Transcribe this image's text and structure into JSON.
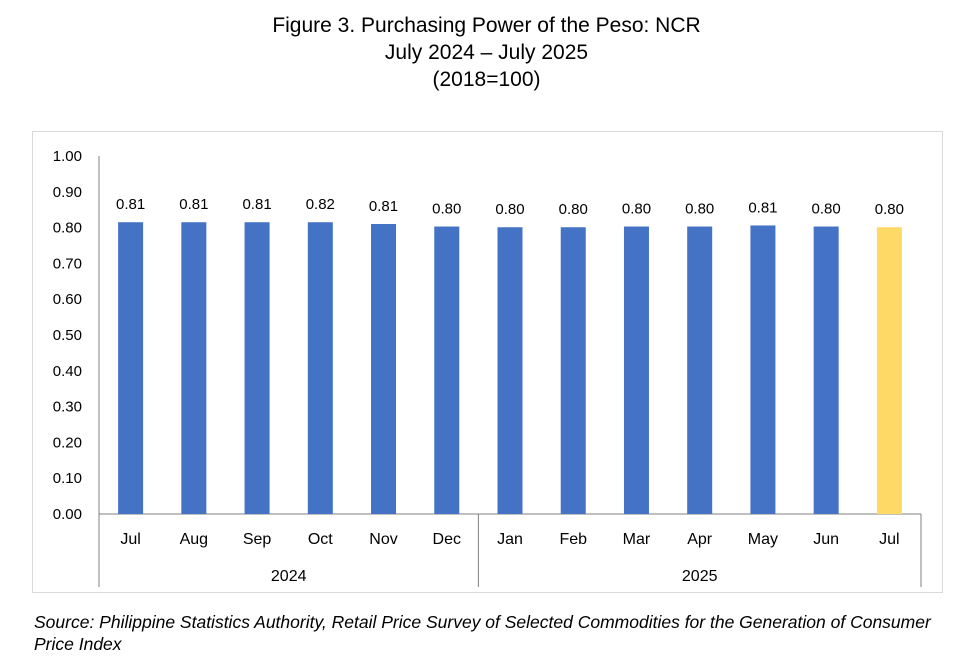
{
  "title_lines": [
    "Figure 3. Purchasing Power of the Peso: NCR",
    "July 2024 – July 2025",
    "(2018=100)"
  ],
  "source": " Source: Philippine Statistics Authority, Retail Price Survey of Selected Commodities for the Generation of Consumer Price Index",
  "colors": {
    "bar": "#4472C4",
    "highlight_bar": "#FFD966",
    "axis": "#808080",
    "frame": "#D9D9D9"
  },
  "chart_data": {
    "type": "bar",
    "categories": [
      "Jul",
      "Aug",
      "Sep",
      "Oct",
      "Nov",
      "Dec",
      "Jan",
      "Feb",
      "Mar",
      "Apr",
      "May",
      "Jun",
      "Jul"
    ],
    "groups": [
      {
        "label": "2024",
        "start": 0,
        "end": 5
      },
      {
        "label": "2025",
        "start": 6,
        "end": 12
      }
    ],
    "values": [
      0.815,
      0.815,
      0.815,
      0.815,
      0.81,
      0.803,
      0.801,
      0.801,
      0.803,
      0.803,
      0.806,
      0.803,
      0.801
    ],
    "data_labels": [
      "0.81",
      "0.81",
      "0.81",
      "0.82",
      "0.81",
      "0.80",
      "0.80",
      "0.80",
      "0.80",
      "0.80",
      "0.81",
      "0.80",
      "0.80"
    ],
    "highlight_index": 12,
    "ylim": [
      0,
      1
    ],
    "yticks": [
      "0.00",
      "0.10",
      "0.20",
      "0.30",
      "0.40",
      "0.50",
      "0.60",
      "0.70",
      "0.80",
      "0.90",
      "1.00"
    ],
    "grid": false,
    "legend": "none"
  }
}
